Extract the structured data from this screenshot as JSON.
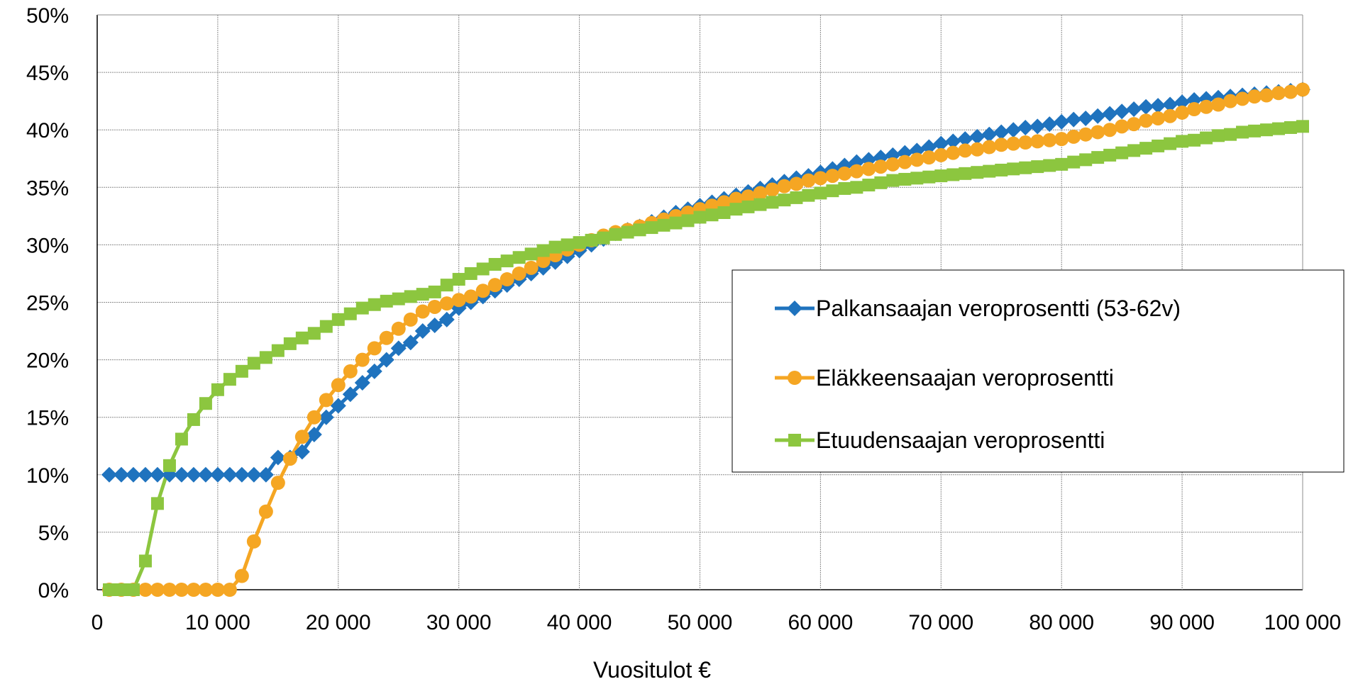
{
  "chart_data": {
    "type": "line",
    "title": "",
    "xlabel": "Vuositulot €",
    "ylabel": "",
    "xlim": [
      0,
      100000
    ],
    "ylim": [
      0,
      50
    ],
    "grid": true,
    "legend_position": "right",
    "x_tick_labels": [
      "0",
      "10 000",
      "20 000",
      "30 000",
      "40 000",
      "50 000",
      "60 000",
      "70 000",
      "80 000",
      "90 000",
      "100 000"
    ],
    "y_tick_labels": [
      "0%",
      "5%",
      "10%",
      "15%",
      "20%",
      "25%",
      "30%",
      "35%",
      "40%",
      "45%",
      "50%"
    ],
    "series": [
      {
        "name": "Palkansaajan veroprosentti (53-62v)",
        "color": "#1f73be",
        "marker": "diamond",
        "x": [
          1000,
          2000,
          3000,
          4000,
          5000,
          6000,
          7000,
          8000,
          9000,
          10000,
          11000,
          12000,
          13000,
          14000,
          15000,
          16000,
          17000,
          18000,
          19000,
          20000,
          21000,
          22000,
          23000,
          24000,
          25000,
          26000,
          27000,
          28000,
          29000,
          30000,
          31000,
          32000,
          33000,
          34000,
          35000,
          36000,
          37000,
          38000,
          39000,
          40000,
          41000,
          42000,
          43000,
          44000,
          45000,
          46000,
          47000,
          48000,
          49000,
          50000,
          51000,
          52000,
          53000,
          54000,
          55000,
          56000,
          57000,
          58000,
          59000,
          60000,
          61000,
          62000,
          63000,
          64000,
          65000,
          66000,
          67000,
          68000,
          69000,
          70000,
          71000,
          72000,
          73000,
          74000,
          75000,
          76000,
          77000,
          78000,
          79000,
          80000,
          81000,
          82000,
          83000,
          84000,
          85000,
          86000,
          87000,
          88000,
          89000,
          90000,
          91000,
          92000,
          93000,
          94000,
          95000,
          96000,
          97000,
          98000,
          99000,
          100000
        ],
        "y": [
          10,
          10,
          10,
          10,
          10,
          10,
          10,
          10,
          10,
          10,
          10,
          10,
          10,
          10,
          11.5,
          11.5,
          12,
          13.5,
          15,
          16,
          17,
          18,
          19,
          20,
          21,
          21.5,
          22.5,
          23,
          23.5,
          24.5,
          25,
          25.5,
          26,
          26.5,
          27,
          27.5,
          28,
          28.5,
          29,
          29.5,
          30,
          30.5,
          31,
          31.3,
          31.6,
          32,
          32.4,
          32.8,
          33.1,
          33.4,
          33.7,
          34,
          34.3,
          34.6,
          34.9,
          35.2,
          35.5,
          35.8,
          36,
          36.3,
          36.6,
          36.9,
          37.2,
          37.4,
          37.6,
          37.8,
          38,
          38.2,
          38.5,
          38.8,
          39,
          39.2,
          39.4,
          39.6,
          39.8,
          40,
          40.2,
          40.3,
          40.5,
          40.7,
          40.9,
          41,
          41.2,
          41.4,
          41.6,
          41.8,
          42,
          42.1,
          42.2,
          42.4,
          42.6,
          42.7,
          42.8,
          42.9,
          43,
          43.1,
          43.2,
          43.3,
          43.4,
          43.5
        ]
      },
      {
        "name": "Eläkkeensaajan veroprosentti",
        "color": "#f5a623",
        "marker": "circle",
        "x": [
          1000,
          2000,
          3000,
          4000,
          5000,
          6000,
          7000,
          8000,
          9000,
          10000,
          11000,
          12000,
          13000,
          14000,
          15000,
          16000,
          17000,
          18000,
          19000,
          20000,
          21000,
          22000,
          23000,
          24000,
          25000,
          26000,
          27000,
          28000,
          29000,
          30000,
          31000,
          32000,
          33000,
          34000,
          35000,
          36000,
          37000,
          38000,
          39000,
          40000,
          41000,
          42000,
          43000,
          44000,
          45000,
          46000,
          47000,
          48000,
          49000,
          50000,
          51000,
          52000,
          53000,
          54000,
          55000,
          56000,
          57000,
          58000,
          59000,
          60000,
          61000,
          62000,
          63000,
          64000,
          65000,
          66000,
          67000,
          68000,
          69000,
          70000,
          71000,
          72000,
          73000,
          74000,
          75000,
          76000,
          77000,
          78000,
          79000,
          80000,
          81000,
          82000,
          83000,
          84000,
          85000,
          86000,
          87000,
          88000,
          89000,
          90000,
          91000,
          92000,
          93000,
          94000,
          95000,
          96000,
          97000,
          98000,
          99000,
          100000
        ],
        "y": [
          0,
          0,
          0,
          0,
          0,
          0,
          0,
          0,
          0,
          0,
          0,
          1.2,
          4.2,
          6.8,
          9.3,
          11.4,
          13.3,
          15,
          16.5,
          17.8,
          19,
          20,
          21,
          21.9,
          22.7,
          23.5,
          24.2,
          24.6,
          24.9,
          25.2,
          25.5,
          26,
          26.5,
          27,
          27.5,
          28,
          28.6,
          29.1,
          29.6,
          30,
          30.4,
          30.8,
          31.1,
          31.3,
          31.6,
          31.9,
          32.2,
          32.5,
          32.8,
          33.1,
          33.4,
          33.7,
          34,
          34.2,
          34.5,
          34.8,
          35.1,
          35.3,
          35.6,
          35.8,
          36,
          36.2,
          36.4,
          36.6,
          36.8,
          37,
          37.2,
          37.4,
          37.6,
          37.8,
          38,
          38.2,
          38.3,
          38.5,
          38.7,
          38.8,
          38.9,
          39,
          39.1,
          39.2,
          39.4,
          39.6,
          39.8,
          40,
          40.3,
          40.5,
          40.8,
          41,
          41.2,
          41.5,
          41.8,
          42,
          42.2,
          42.5,
          42.7,
          42.9,
          43,
          43.2,
          43.3,
          43.5
        ]
      },
      {
        "name": "Etuudensaajan veroprosentti",
        "color": "#8cc63f",
        "marker": "square",
        "x": [
          1000,
          2000,
          3000,
          4000,
          5000,
          6000,
          7000,
          8000,
          9000,
          10000,
          11000,
          12000,
          13000,
          14000,
          15000,
          16000,
          17000,
          18000,
          19000,
          20000,
          21000,
          22000,
          23000,
          24000,
          25000,
          26000,
          27000,
          28000,
          29000,
          30000,
          31000,
          32000,
          33000,
          34000,
          35000,
          36000,
          37000,
          38000,
          39000,
          40000,
          41000,
          42000,
          43000,
          44000,
          45000,
          46000,
          47000,
          48000,
          49000,
          50000,
          51000,
          52000,
          53000,
          54000,
          55000,
          56000,
          57000,
          58000,
          59000,
          60000,
          61000,
          62000,
          63000,
          64000,
          65000,
          66000,
          67000,
          68000,
          69000,
          70000,
          71000,
          72000,
          73000,
          74000,
          75000,
          76000,
          77000,
          78000,
          79000,
          80000,
          81000,
          82000,
          83000,
          84000,
          85000,
          86000,
          87000,
          88000,
          89000,
          90000,
          91000,
          92000,
          93000,
          94000,
          95000,
          96000,
          97000,
          98000,
          99000,
          100000
        ],
        "y": [
          0,
          0,
          0,
          2.5,
          7.5,
          10.8,
          13.1,
          14.8,
          16.2,
          17.4,
          18.3,
          19,
          19.7,
          20.2,
          20.8,
          21.4,
          21.9,
          22.3,
          22.9,
          23.5,
          24,
          24.5,
          24.8,
          25.1,
          25.3,
          25.5,
          25.7,
          25.9,
          26.5,
          27,
          27.5,
          27.9,
          28.3,
          28.6,
          28.9,
          29.2,
          29.5,
          29.8,
          30,
          30.2,
          30.4,
          30.6,
          30.9,
          31.1,
          31.3,
          31.5,
          31.7,
          31.9,
          32.1,
          32.4,
          32.6,
          32.8,
          33.1,
          33.3,
          33.5,
          33.7,
          33.9,
          34.1,
          34.3,
          34.5,
          34.7,
          34.9,
          35,
          35.2,
          35.4,
          35.6,
          35.7,
          35.8,
          35.9,
          36,
          36.1,
          36.2,
          36.3,
          36.4,
          36.5,
          36.6,
          36.7,
          36.8,
          36.9,
          37,
          37.2,
          37.4,
          37.6,
          37.8,
          38,
          38.2,
          38.4,
          38.6,
          38.8,
          39,
          39.1,
          39.3,
          39.5,
          39.6,
          39.8,
          39.9,
          40,
          40.1,
          40.2,
          40.3
        ]
      }
    ]
  }
}
